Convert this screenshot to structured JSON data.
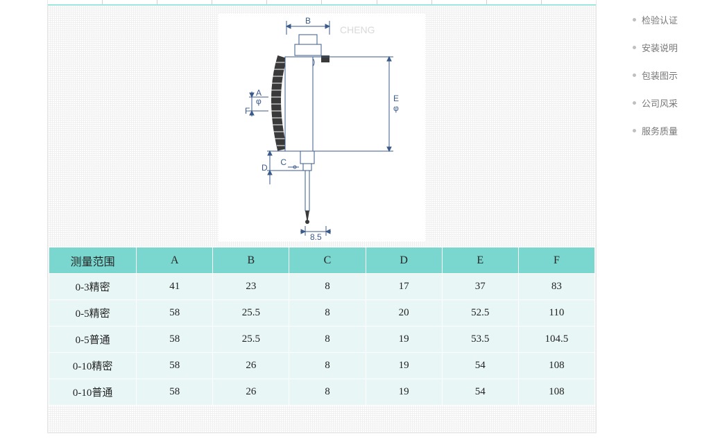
{
  "colors": {
    "table_header_bg": "#7ad7cf",
    "table_cell_bg": "#e8f6f5",
    "diagram_line": "#3a5a8a",
    "diagram_fill_dark": "#3a3a3a",
    "sidebar_text": "#777777",
    "sidebar_bullet": "#bfbfbf"
  },
  "diagram": {
    "labels": {
      "A": "A",
      "B": "B",
      "C": "C",
      "D": "D",
      "E": "E",
      "F": "F",
      "phi_e": "φ",
      "phi_a": "φ",
      "tip": "8.5"
    },
    "watermark": "CHENG"
  },
  "spec_table": {
    "headers": [
      "测量范围",
      "A",
      "B",
      "C",
      "D",
      "E",
      "F"
    ],
    "rows": [
      {
        "label": "0-3精密",
        "cells": [
          "41",
          "23",
          "8",
          "17",
          "37",
          "83"
        ]
      },
      {
        "label": "0-5精密",
        "cells": [
          "58",
          "25.5",
          "8",
          "20",
          "52.5",
          "110"
        ]
      },
      {
        "label": "0-5普通",
        "cells": [
          "58",
          "25.5",
          "8",
          "19",
          "53.5",
          "104.5"
        ]
      },
      {
        "label": "0-10精密",
        "cells": [
          "58",
          "26",
          "8",
          "19",
          "54",
          "108"
        ]
      },
      {
        "label": "0-10普通",
        "cells": [
          "58",
          "26",
          "8",
          "19",
          "54",
          "108"
        ]
      }
    ]
  },
  "sidebar": {
    "items": [
      {
        "label": "检验认证"
      },
      {
        "label": "安装说明"
      },
      {
        "label": "包装图示"
      },
      {
        "label": "公司风采"
      },
      {
        "label": "服务质量"
      }
    ]
  }
}
